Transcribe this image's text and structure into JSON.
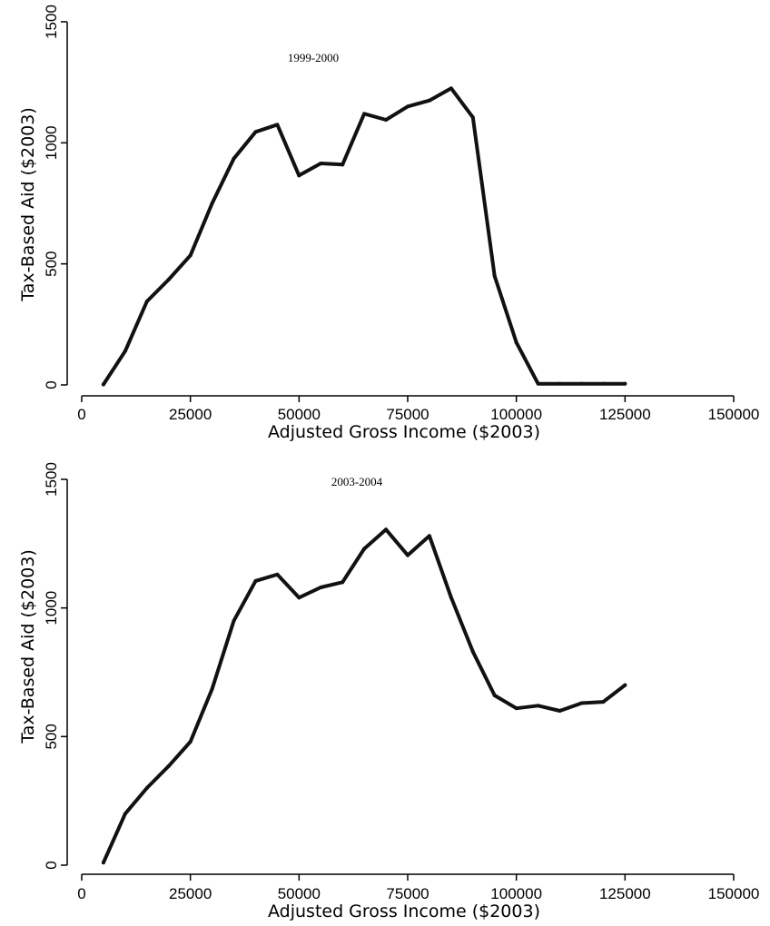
{
  "chart_data": [
    {
      "type": "line",
      "title": "1999-2000",
      "xlabel": "Adjusted Gross Income ($2003)",
      "ylabel": "Tax-Based Aid ($2003)",
      "xlim": [
        0,
        150000
      ],
      "ylim": [
        0,
        1500
      ],
      "xticks": [
        0,
        25000,
        50000,
        75000,
        100000,
        125000,
        150000
      ],
      "yticks": [
        0,
        500,
        1000,
        1500
      ],
      "grid": false,
      "x": [
        5000,
        10000,
        15000,
        20000,
        25000,
        30000,
        35000,
        40000,
        45000,
        50000,
        55000,
        60000,
        65000,
        70000,
        75000,
        80000,
        85000,
        90000,
        95000,
        100000,
        105000,
        110000,
        115000,
        120000,
        125000
      ],
      "series": [
        {
          "values": [
            2,
            140,
            345,
            435,
            535,
            750,
            935,
            1045,
            1075,
            865,
            915,
            910,
            1120,
            1095,
            1150,
            1175,
            1225,
            1105,
            450,
            175,
            5,
            5,
            5,
            5,
            5
          ]
        }
      ]
    },
    {
      "type": "line",
      "title": "2003-2004",
      "xlabel": "Adjusted Gross Income ($2003)",
      "ylabel": "Tax-Based Aid ($2003)",
      "xlim": [
        0,
        150000
      ],
      "ylim": [
        0,
        1500
      ],
      "xticks": [
        0,
        25000,
        50000,
        75000,
        100000,
        125000,
        150000
      ],
      "yticks": [
        0,
        500,
        1000,
        1500
      ],
      "grid": false,
      "x": [
        5000,
        10000,
        15000,
        20000,
        25000,
        30000,
        35000,
        40000,
        45000,
        50000,
        55000,
        60000,
        65000,
        70000,
        75000,
        80000,
        85000,
        90000,
        95000,
        100000,
        105000,
        110000,
        115000,
        120000,
        125000
      ],
      "series": [
        {
          "values": [
            10,
            200,
            300,
            385,
            480,
            685,
            950,
            1105,
            1130,
            1040,
            1080,
            1100,
            1230,
            1305,
            1205,
            1280,
            1040,
            830,
            660,
            610,
            620,
            600,
            630,
            635,
            700
          ]
        }
      ]
    }
  ]
}
